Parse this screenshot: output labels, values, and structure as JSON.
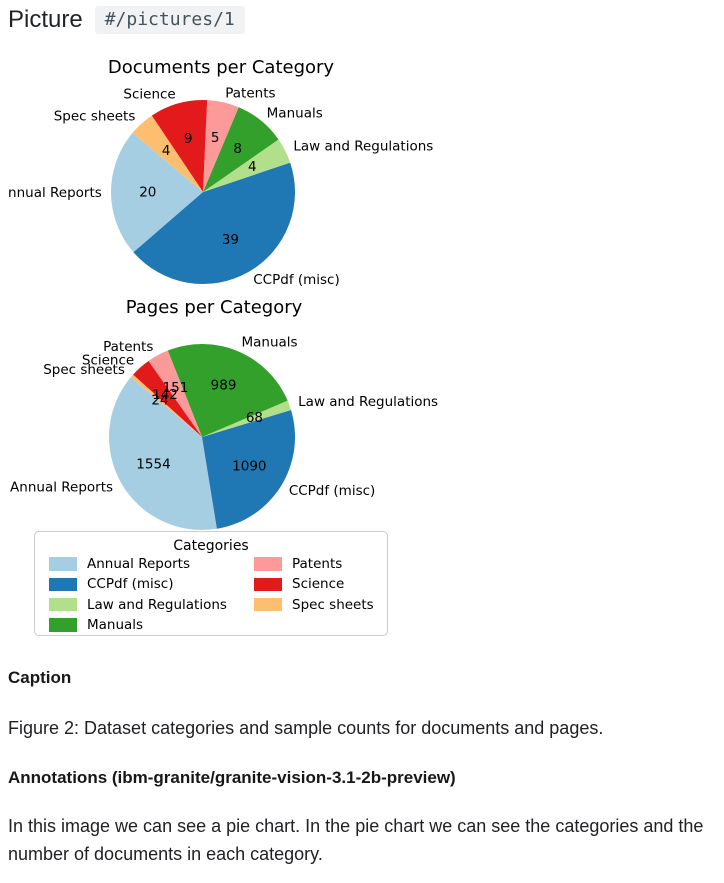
{
  "header": {
    "title": "Picture",
    "path_badge": "#/pictures/1"
  },
  "chart_data": [
    {
      "type": "pie",
      "title": "Documents per Category",
      "categories": [
        "Annual Reports",
        "CCPdf (misc)",
        "Law and Regulations",
        "Manuals",
        "Patents",
        "Science",
        "Spec sheets"
      ],
      "values": [
        20,
        39,
        4,
        8,
        5,
        9,
        4
      ],
      "colors": [
        "#a6cee3",
        "#1f78b4",
        "#b2df8a",
        "#33a02c",
        "#fb9a99",
        "#e31a1c",
        "#fdbf6f"
      ],
      "start_angle": 140,
      "counterclock": true,
      "label_distance": 1.1,
      "pct_distance": 0.6,
      "legend_position": "below"
    },
    {
      "type": "pie",
      "title": "Pages per Category",
      "categories": [
        "Annual Reports",
        "CCPdf (misc)",
        "Law and Regulations",
        "Manuals",
        "Patents",
        "Science",
        "Spec sheets"
      ],
      "values": [
        1554,
        1090,
        68,
        989,
        151,
        142,
        24
      ],
      "colors": [
        "#a6cee3",
        "#1f78b4",
        "#b2df8a",
        "#33a02c",
        "#fb9a99",
        "#e31a1c",
        "#fdbf6f"
      ],
      "start_angle": 140,
      "counterclock": true,
      "label_distance": 1.1,
      "pct_distance": 0.6,
      "legend_position": "below"
    }
  ],
  "legend": {
    "title": "Categories",
    "entries": [
      {
        "label": "Annual Reports",
        "color": "#a6cee3"
      },
      {
        "label": "CCPdf (misc)",
        "color": "#1f78b4"
      },
      {
        "label": "Law and Regulations",
        "color": "#b2df8a"
      },
      {
        "label": "Manuals",
        "color": "#33a02c"
      },
      {
        "label": "Patents",
        "color": "#fb9a99"
      },
      {
        "label": "Science",
        "color": "#e31a1c"
      },
      {
        "label": "Spec sheets",
        "color": "#fdbf6f"
      }
    ]
  },
  "caption": {
    "heading": "Caption",
    "text": "Figure 2: Dataset categories and sample counts for documents and pages."
  },
  "annotations": {
    "heading": "Annotations (ibm-granite/granite-vision-3.1-2b-preview)",
    "text": "In this image we can see a pie chart. In the pie chart we can see the categories and the number of documents in each category."
  }
}
